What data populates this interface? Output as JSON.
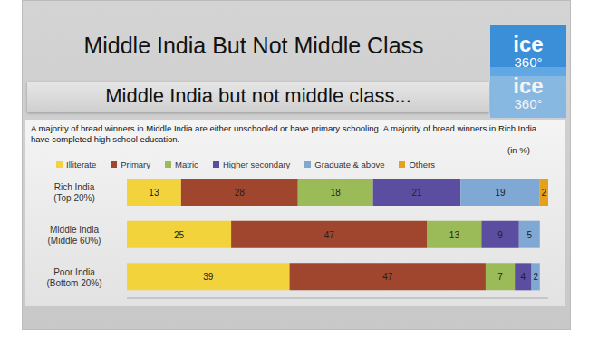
{
  "chart_data": {
    "type": "bar",
    "orientation": "horizontal",
    "stacked": true,
    "data_labels": true,
    "tick_labels": "y",
    "legend": "top",
    "title": "Middle India But Not Middle Class",
    "subtitle": "Middle India but not middle class...",
    "note": "A majority of bread winners in Middle India are either unschooled or have primary schooling. A majority of bread winners in Rich India have completed high school education.",
    "annotations": [
      "(in %)",
      "ice",
      "360°"
    ],
    "categories": [
      "Rich India (Top 20%)",
      "Middle India (Middle 60%)",
      "Poor India (Bottom 20%)"
    ],
    "xlim": [
      0,
      101
    ],
    "series": [
      {
        "name": "Illiterate",
        "color": "#f2d33c",
        "values": [
          13,
          25,
          39
        ]
      },
      {
        "name": "Primary",
        "color": "#a0452e",
        "values": [
          28,
          47,
          47
        ]
      },
      {
        "name": "Matric",
        "color": "#9bbb59",
        "values": [
          18,
          13,
          7
        ]
      },
      {
        "name": "Higher secondary",
        "color": "#5b4ea0",
        "values": [
          21,
          9,
          4
        ]
      },
      {
        "name": "Graduate & above",
        "color": "#7fa9d4",
        "values": [
          19,
          5,
          2
        ]
      },
      {
        "name": "Others",
        "color": "#e3a21a",
        "values": [
          2,
          0,
          0
        ]
      }
    ]
  }
}
